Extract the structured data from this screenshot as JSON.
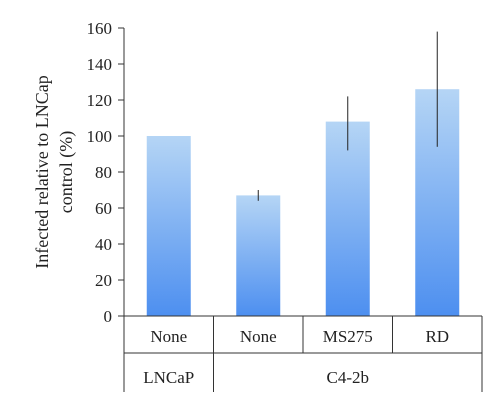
{
  "chart_data": {
    "type": "bar",
    "ylabel_lines": [
      "Infected relative to LNCap",
      "control (%)"
    ],
    "ylim": [
      0,
      160
    ],
    "yticks": [
      0,
      20,
      40,
      60,
      80,
      100,
      120,
      140,
      160
    ],
    "categories": [
      "None",
      "None",
      "MS275",
      "RD"
    ],
    "values": [
      100,
      67,
      108,
      126
    ],
    "error_low": [
      null,
      64,
      92,
      94
    ],
    "error_high": [
      null,
      70,
      122,
      158
    ],
    "groups": [
      {
        "label": "LNCaP",
        "categories": [
          0
        ]
      },
      {
        "label": "C4-2b",
        "categories": [
          1,
          2,
          3
        ]
      }
    ],
    "grid": false,
    "legend": "none",
    "bar_gradient": {
      "top": "#b5d5f5",
      "bottom": "#4d8ff0"
    }
  }
}
